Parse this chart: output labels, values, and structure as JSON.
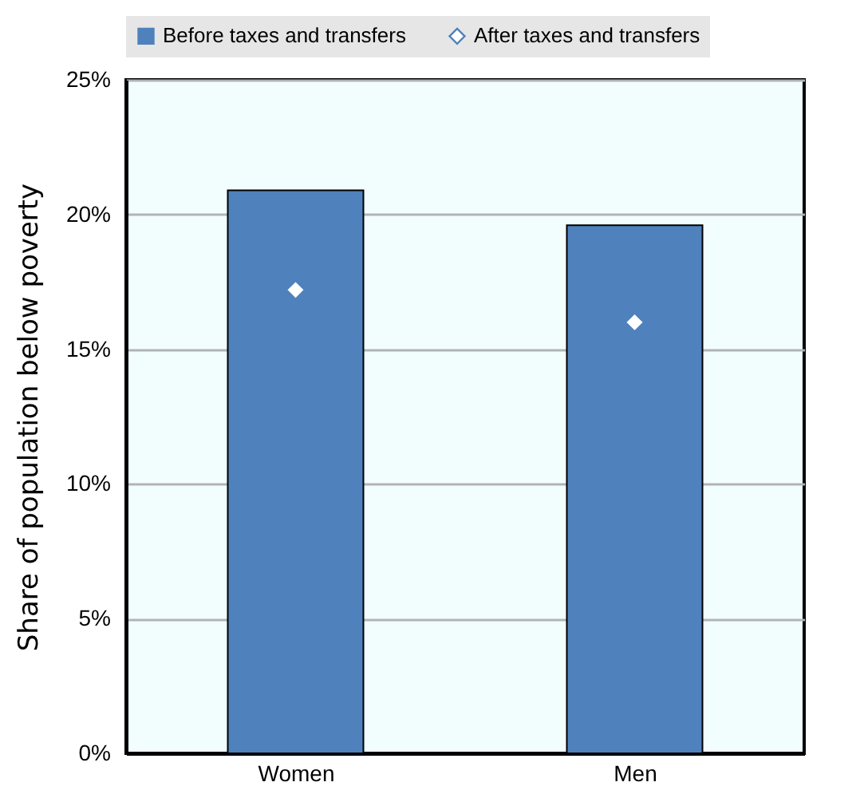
{
  "chart_data": {
    "type": "bar",
    "ylabel": "Share of population below poverty",
    "categories": [
      "Women",
      "Men"
    ],
    "series": [
      {
        "name": "Before taxes and transfers",
        "color": "#4f81bd",
        "values": [
          20.9,
          19.6
        ]
      },
      {
        "name": "After taxes and transfers",
        "type": "scatter",
        "color": "#ffffff",
        "marker": "diamond",
        "values": [
          17.2,
          16.0
        ]
      }
    ],
    "ylim": [
      0,
      25
    ],
    "yticks": [
      {
        "value": 0,
        "label": "0%"
      },
      {
        "value": 5,
        "label": "5%"
      },
      {
        "value": 10,
        "label": "10%"
      },
      {
        "value": 15,
        "label": "15%"
      },
      {
        "value": 20,
        "label": "20%"
      },
      {
        "value": 25,
        "label": "25%"
      }
    ],
    "grid": "y",
    "legend": "top"
  }
}
